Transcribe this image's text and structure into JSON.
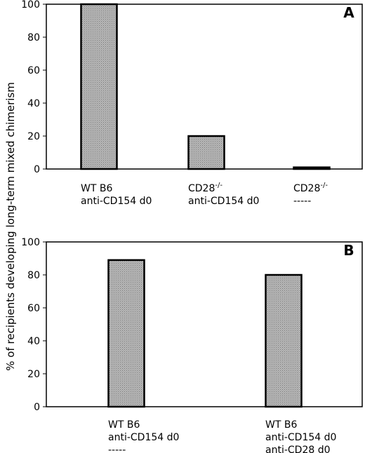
{
  "ylabel": "% of recipients developing long-term mixed chimerism",
  "chart_data": [
    {
      "type": "bar",
      "panel": "A",
      "categories": [
        {
          "lines": [
            {
              "text": "WT B6"
            },
            {
              "text": "anti-CD154 d0"
            }
          ]
        },
        {
          "lines": [
            {
              "text": "CD28",
              "sup": "-/-"
            },
            {
              "text": "anti-CD154 d0"
            }
          ]
        },
        {
          "lines": [
            {
              "text": "CD28",
              "sup": "-/-"
            },
            {
              "text": "-----"
            }
          ]
        }
      ],
      "values": [
        100,
        20,
        1
      ],
      "ylim": [
        0,
        100
      ],
      "yticks": [
        0,
        20,
        40,
        60,
        80,
        100
      ],
      "bar_color": "#a9a9a9",
      "grid": false
    },
    {
      "type": "bar",
      "panel": "B",
      "categories": [
        {
          "lines": [
            {
              "text": "WT B6"
            },
            {
              "text": "anti-CD154 d0"
            },
            {
              "text": "-----"
            }
          ]
        },
        {
          "lines": [
            {
              "text": "WT B6"
            },
            {
              "text": "anti-CD154 d0"
            },
            {
              "text": "anti-CD28 d0"
            }
          ]
        }
      ],
      "values": [
        89,
        80
      ],
      "ylim": [
        0,
        100
      ],
      "yticks": [
        0,
        20,
        40,
        60,
        80,
        100
      ],
      "bar_color": "#a9a9a9",
      "grid": false
    }
  ]
}
